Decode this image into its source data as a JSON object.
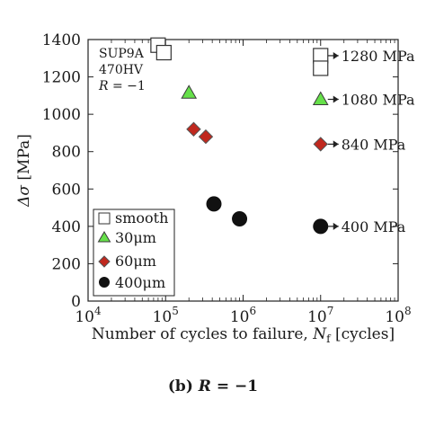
{
  "chart_data": {
    "type": "scatter",
    "xscale": "log",
    "xlim": [
      10000,
      100000000
    ],
    "ylim": [
      0,
      1400
    ],
    "xticks": [
      {
        "value": 10000,
        "base": "10",
        "exp": "4"
      },
      {
        "value": 100000,
        "base": "10",
        "exp": "5"
      },
      {
        "value": 1000000,
        "base": "10",
        "exp": "6"
      },
      {
        "value": 10000000,
        "base": "10",
        "exp": "7"
      },
      {
        "value": 100000000,
        "base": "10",
        "exp": "8"
      }
    ],
    "yticks": [
      "0",
      "200",
      "400",
      "600",
      "800",
      "1000",
      "1200",
      "1400"
    ],
    "xlabel": {
      "main": "Number of cycles to failure, ",
      "sym": "N",
      "sub": "f",
      "unit": " [cycles]"
    },
    "ylabel": {
      "sym": "Δσ",
      "unit": " [MPa]"
    },
    "info": {
      "line1": "SUP9A",
      "line2": "470HV",
      "line3_sym": "R",
      "line3_rest": " = −1"
    },
    "legend_placement": "bottom-left",
    "series": [
      {
        "name": "smooth",
        "marker": "square",
        "color": "#ffffff",
        "stroke": "#333333",
        "points": [
          {
            "x": 80000,
            "y": 1370
          },
          {
            "x": 95000,
            "y": 1330
          }
        ]
      },
      {
        "name": "30μm",
        "marker": "triangle",
        "color": "#66e04a",
        "stroke": "#3a3a3a",
        "points": [
          {
            "x": 200000,
            "y": 1115
          }
        ]
      },
      {
        "name": "60μm",
        "marker": "diamond",
        "color": "#c0281e",
        "stroke": "#555555",
        "points": [
          {
            "x": 230000,
            "y": 920
          },
          {
            "x": 330000,
            "y": 880
          }
        ]
      },
      {
        "name": "400μm",
        "marker": "circle",
        "color": "#111111",
        "stroke": "#111111",
        "points": [
          {
            "x": 420000,
            "y": 520
          },
          {
            "x": 900000,
            "y": 440
          }
        ]
      }
    ],
    "runouts": [
      {
        "series": "smooth",
        "marker": "square",
        "x": 10000000,
        "y": 1280,
        "stacked": true,
        "label": "1280 MPa"
      },
      {
        "series": "30μm",
        "marker": "triangle",
        "x": 10000000,
        "y": 1080,
        "label": "1080 MPa"
      },
      {
        "series": "60μm",
        "marker": "diamond",
        "x": 10000000,
        "y": 840,
        "label": "840 MPa"
      },
      {
        "series": "400μm",
        "marker": "circle",
        "x": 10000000,
        "y": 400,
        "label": "400 MPa"
      }
    ]
  },
  "caption": {
    "prefix": "(b) ",
    "sym": "R",
    "rest": " = −1"
  }
}
